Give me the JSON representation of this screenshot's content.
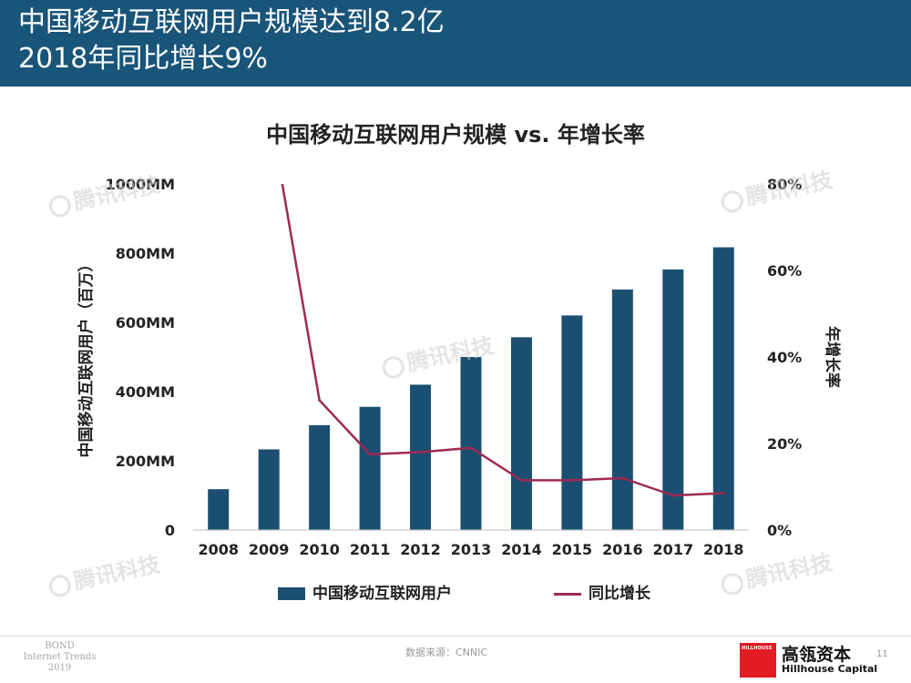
{
  "header": {
    "line1": "中国移动互联网用户规模达到8.2亿",
    "line2": "2018年同比增长9%"
  },
  "watermark_text": "腾讯科技",
  "chart_data": {
    "type": "bar",
    "title": "中国移动互联网用户规模 vs. 年增长率",
    "categories": [
      "2008",
      "2009",
      "2010",
      "2011",
      "2012",
      "2013",
      "2014",
      "2015",
      "2016",
      "2017",
      "2018"
    ],
    "series": [
      {
        "name": "中国移动互联网用户",
        "type": "bar",
        "axis": "left",
        "values": [
          118,
          233,
          303,
          356,
          420,
          500,
          557,
          620,
          695,
          753,
          817
        ],
        "color": "#1b4f72"
      },
      {
        "name": "同比增长",
        "type": "line",
        "axis": "right",
        "values": [
          null,
          98,
          30,
          17.5,
          18,
          19,
          11.5,
          11.5,
          12,
          8,
          8.5
        ],
        "color": "#9e2a53"
      }
    ],
    "y_left": {
      "label": "中国移动互联网用户（百万）",
      "ticks": [
        "0",
        "200MM",
        "400MM",
        "600MM",
        "800MM",
        "1000MM"
      ],
      "range": [
        0,
        1000
      ]
    },
    "y_right": {
      "label": "年增长率",
      "ticks": [
        "0%",
        "20%",
        "40%",
        "60%",
        "80%"
      ],
      "range": [
        0,
        80
      ]
    },
    "grid": false,
    "legend": "bottom"
  },
  "footer": {
    "bond_line1": "BOND",
    "bond_line2": "Internet Trends",
    "bond_line3": "2019",
    "source": "数据来源：CNNIC",
    "hillhouse_mark": "HILLHOUSE",
    "hillhouse_cn": "高瓴资本",
    "hillhouse_en": "Hillhouse Capital",
    "page_number": "11"
  }
}
